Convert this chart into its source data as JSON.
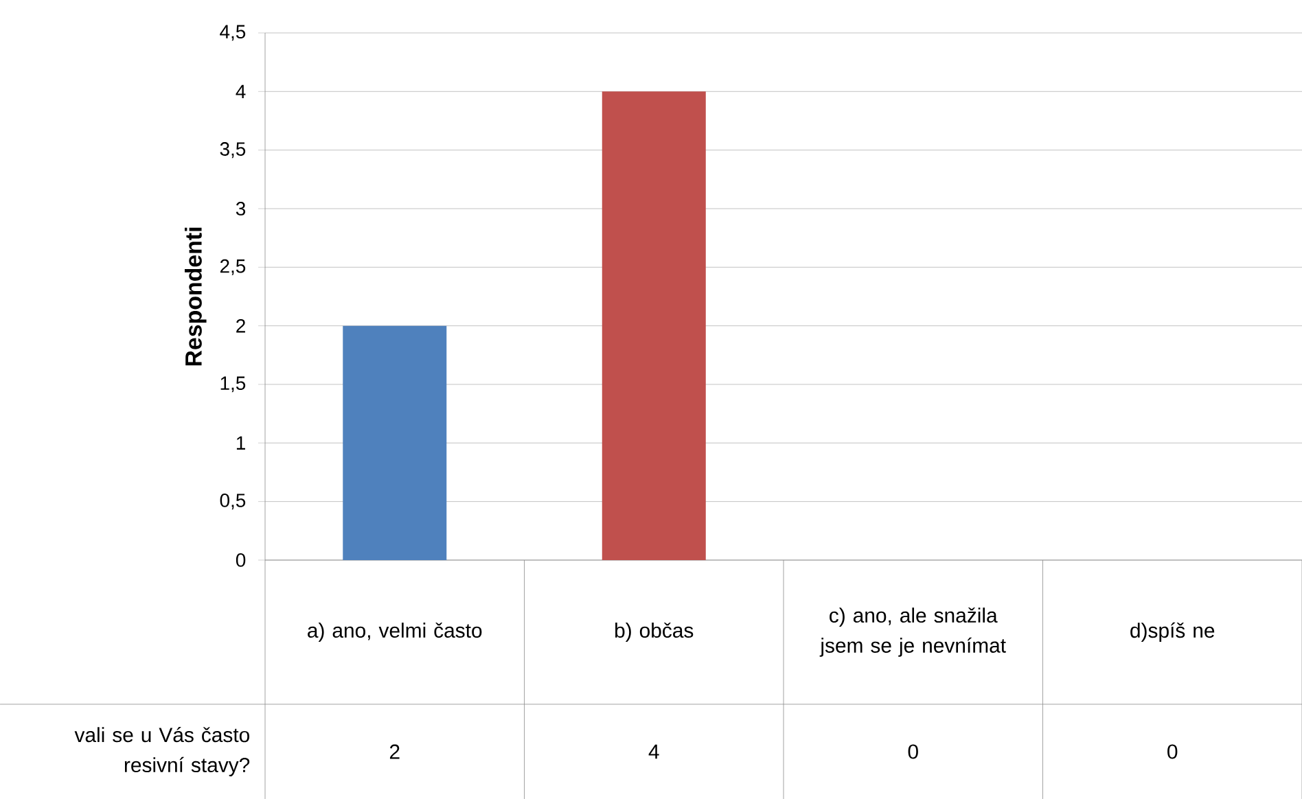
{
  "chart_data": {
    "type": "bar",
    "ylabel": "Respondenti",
    "categories": [
      "a) ano, velmi často",
      "b) občas",
      "c) ano, ale snažila jsem se je nevnímat",
      "d)spíš ne"
    ],
    "series": [
      {
        "name": "vali se u Vás často resivní stavy?",
        "values": [
          2,
          4,
          0,
          0
        ],
        "colors": [
          "#4f81bd",
          "#c0504d",
          "#9bbb59",
          "#8064a2"
        ]
      }
    ],
    "ylim": [
      0,
      4.5
    ],
    "yticks": [
      0,
      {
        "value": 0.5,
        "label": "0,5"
      },
      1,
      {
        "value": 1.5,
        "label": "1,5"
      },
      2,
      {
        "value": 2.5,
        "label": "2,5"
      },
      3,
      {
        "value": 3.5,
        "label": "3,5"
      },
      4,
      {
        "value": 4.5,
        "label": "4,5"
      }
    ],
    "grid": "y",
    "data_labels": true
  }
}
